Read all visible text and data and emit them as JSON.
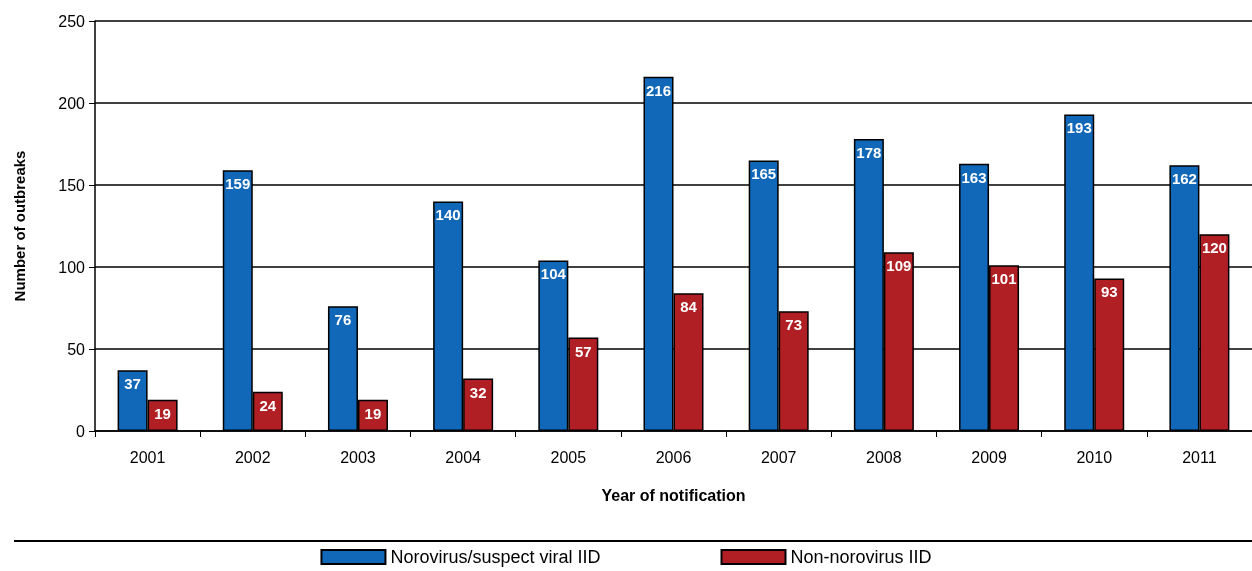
{
  "chart_data": {
    "type": "bar",
    "xlabel": "Year of notification",
    "ylabel": "Number of outbreaks",
    "categories": [
      "2001",
      "2002",
      "2003",
      "2004",
      "2005",
      "2006",
      "2007",
      "2008",
      "2009",
      "2010",
      "2011"
    ],
    "series": [
      {
        "name": "Norovirus/suspect viral IID",
        "color": "#1167b8",
        "values": [
          37,
          159,
          76,
          140,
          104,
          216,
          165,
          178,
          163,
          193,
          162
        ]
      },
      {
        "name": "Non-norovirus IID",
        "color": "#b01f24",
        "values": [
          19,
          24,
          19,
          32,
          57,
          84,
          73,
          109,
          101,
          93,
          120
        ]
      }
    ],
    "ylim": [
      0,
      250
    ],
    "yticks": [
      0,
      50,
      100,
      150,
      200,
      250
    ],
    "grid": "y",
    "legend": "bottom",
    "data_labels": true
  }
}
